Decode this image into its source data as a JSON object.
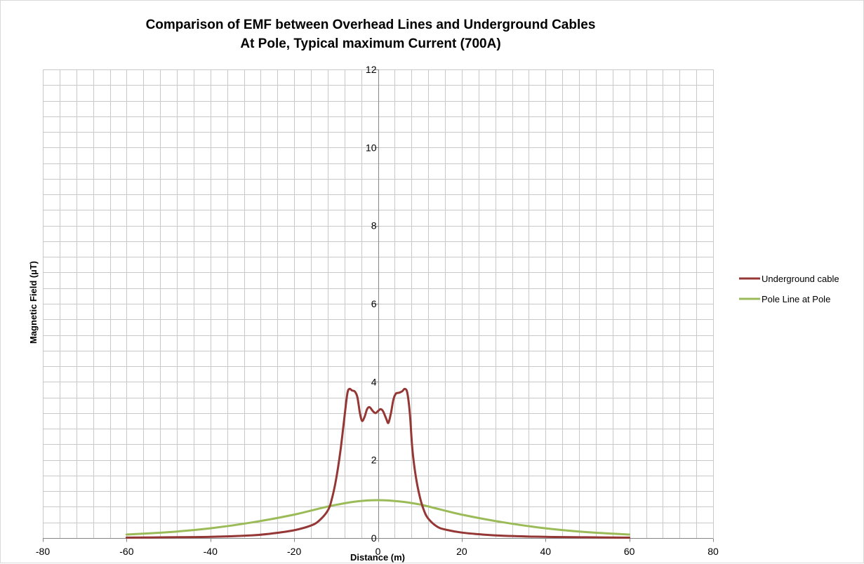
{
  "chart_data": {
    "type": "line",
    "title_line1": "Comparison of EMF between Overhead Lines and Underground Cables",
    "title_line2": "At Pole, Typical maximum Current (700A)",
    "xlabel": "Distance (m)",
    "ylabel": "Magnetic Field (µT)",
    "xlim": [
      -80,
      80
    ],
    "ylim": [
      0,
      12
    ],
    "x_major_ticks": [
      -80,
      -60,
      -40,
      -20,
      0,
      20,
      40,
      60,
      80
    ],
    "y_major_ticks": [
      0,
      2,
      4,
      6,
      8,
      10,
      12
    ],
    "x_minor_step": 4,
    "y_minor_step": 0.4,
    "grid": true,
    "legend_position": "right",
    "series": [
      {
        "name": "Underground cable",
        "color": "#953735",
        "points": [
          [
            -60,
            0.01
          ],
          [
            -50,
            0.02
          ],
          [
            -40,
            0.03
          ],
          [
            -30,
            0.07
          ],
          [
            -25,
            0.12
          ],
          [
            -20,
            0.2
          ],
          [
            -16,
            0.32
          ],
          [
            -14,
            0.45
          ],
          [
            -12,
            0.7
          ],
          [
            -11,
            1.0
          ],
          [
            -10,
            1.5
          ],
          [
            -9,
            2.2
          ],
          [
            -8,
            3.1
          ],
          [
            -7.3,
            3.7
          ],
          [
            -6.8,
            3.82
          ],
          [
            -6.2,
            3.78
          ],
          [
            -5.5,
            3.75
          ],
          [
            -4.9,
            3.6
          ],
          [
            -4.3,
            3.2
          ],
          [
            -3.8,
            3.0
          ],
          [
            -3.2,
            3.1
          ],
          [
            -2.6,
            3.3
          ],
          [
            -2.0,
            3.35
          ],
          [
            -1.2,
            3.25
          ],
          [
            -0.6,
            3.2
          ],
          [
            0,
            3.25
          ],
          [
            0.6,
            3.3
          ],
          [
            1.2,
            3.25
          ],
          [
            2.0,
            3.05
          ],
          [
            2.5,
            2.95
          ],
          [
            3.1,
            3.2
          ],
          [
            3.7,
            3.55
          ],
          [
            4.3,
            3.7
          ],
          [
            5.0,
            3.72
          ],
          [
            5.8,
            3.76
          ],
          [
            6.4,
            3.82
          ],
          [
            7.0,
            3.72
          ],
          [
            7.6,
            3.2
          ],
          [
            8.2,
            2.3
          ],
          [
            9,
            1.6
          ],
          [
            10,
            1.05
          ],
          [
            11,
            0.7
          ],
          [
            12,
            0.5
          ],
          [
            14,
            0.3
          ],
          [
            16,
            0.22
          ],
          [
            20,
            0.14
          ],
          [
            25,
            0.09
          ],
          [
            30,
            0.06
          ],
          [
            40,
            0.03
          ],
          [
            50,
            0.02
          ],
          [
            60,
            0.01
          ]
        ]
      },
      {
        "name": "Pole Line at Pole",
        "color": "#9BBB59",
        "points": [
          [
            -60,
            0.09
          ],
          [
            -50,
            0.15
          ],
          [
            -40,
            0.25
          ],
          [
            -30,
            0.4
          ],
          [
            -20,
            0.6
          ],
          [
            -15,
            0.73
          ],
          [
            -10,
            0.85
          ],
          [
            -5,
            0.94
          ],
          [
            0,
            0.97
          ],
          [
            5,
            0.94
          ],
          [
            10,
            0.86
          ],
          [
            15,
            0.73
          ],
          [
            20,
            0.6
          ],
          [
            30,
            0.4
          ],
          [
            40,
            0.25
          ],
          [
            50,
            0.15
          ],
          [
            60,
            0.09
          ]
        ]
      }
    ]
  }
}
